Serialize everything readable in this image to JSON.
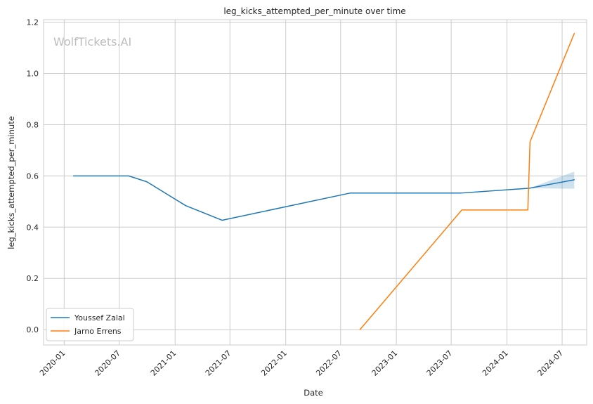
{
  "chart_data": {
    "type": "line",
    "title": "leg_kicks_attempted_per_minute over time",
    "xlabel": "Date",
    "ylabel": "leg_kicks_attempted_per_minute",
    "watermark": "WolfTickets.AI",
    "x_ticks": [
      "2020-01",
      "2020-07",
      "2021-01",
      "2021-07",
      "2022-01",
      "2022-07",
      "2023-01",
      "2023-07",
      "2024-01",
      "2024-07"
    ],
    "y_ticks": [
      "0.0",
      "0.2",
      "0.4",
      "0.6",
      "0.8",
      "1.0",
      "1.2"
    ],
    "xlim": [
      "2019-10-25",
      "2024-09-20"
    ],
    "ylim": [
      -0.06,
      1.21
    ],
    "grid": true,
    "legend_position": "lower-left",
    "series": [
      {
        "name": "Youssef Zalal",
        "color": "#1f77b4",
        "points": [
          {
            "x": "2020-02-01",
            "y": 0.6
          },
          {
            "x": "2020-08-01",
            "y": 0.6
          },
          {
            "x": "2020-09-30",
            "y": 0.577
          },
          {
            "x": "2021-02-05",
            "y": 0.484
          },
          {
            "x": "2021-06-05",
            "y": 0.427
          },
          {
            "x": "2022-08-01",
            "y": 0.533
          },
          {
            "x": "2023-08-01",
            "y": 0.533
          },
          {
            "x": "2024-03-15",
            "y": 0.552
          },
          {
            "x": "2024-08-10",
            "y": 0.585
          }
        ],
        "band": [
          {
            "x": "2024-03-15",
            "low": 0.552,
            "high": 0.552
          },
          {
            "x": "2024-08-10",
            "low": 0.55,
            "high": 0.617
          }
        ]
      },
      {
        "name": "Jarno Errens",
        "color": "#ff7f0e",
        "points": [
          {
            "x": "2022-09-03",
            "y": 0.0
          },
          {
            "x": "2023-08-05",
            "y": 0.467
          },
          {
            "x": "2024-03-10",
            "y": 0.467
          },
          {
            "x": "2024-03-17",
            "y": 0.733
          },
          {
            "x": "2024-08-10",
            "y": 1.156
          }
        ]
      }
    ]
  }
}
